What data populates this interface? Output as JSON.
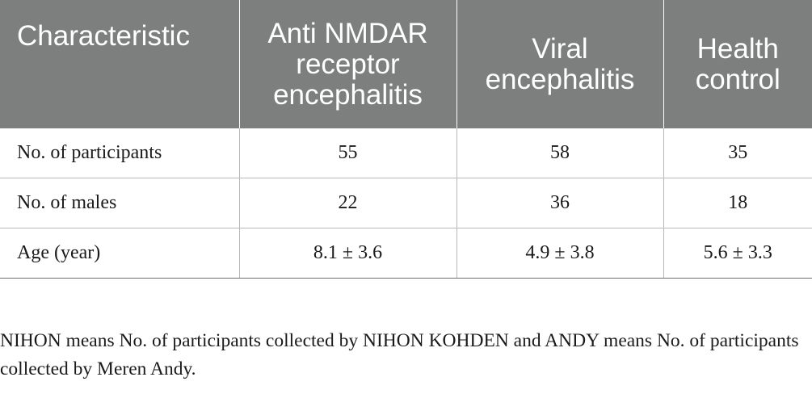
{
  "table": {
    "headers": [
      "Characteristic",
      "Anti NMDAR receptor encephalitis",
      "Viral encephalitis",
      "Health control"
    ],
    "rows": [
      [
        "No. of participants",
        "55",
        "58",
        "35"
      ],
      [
        "No. of males",
        "22",
        "36",
        "18"
      ],
      [
        "Age (year)",
        "8.1 ± 3.6",
        "4.9 ± 3.8",
        "5.6 ± 3.3"
      ]
    ]
  },
  "footnote": "NIHON means No. of participants collected by NIHON KOHDEN and ANDY means No. of participants collected by Meren Andy.",
  "colors": {
    "header_background": "#7d7f7e",
    "header_text": "#ffffff",
    "body_text": "#1a1a1a",
    "rule": "#b8b8b8"
  }
}
